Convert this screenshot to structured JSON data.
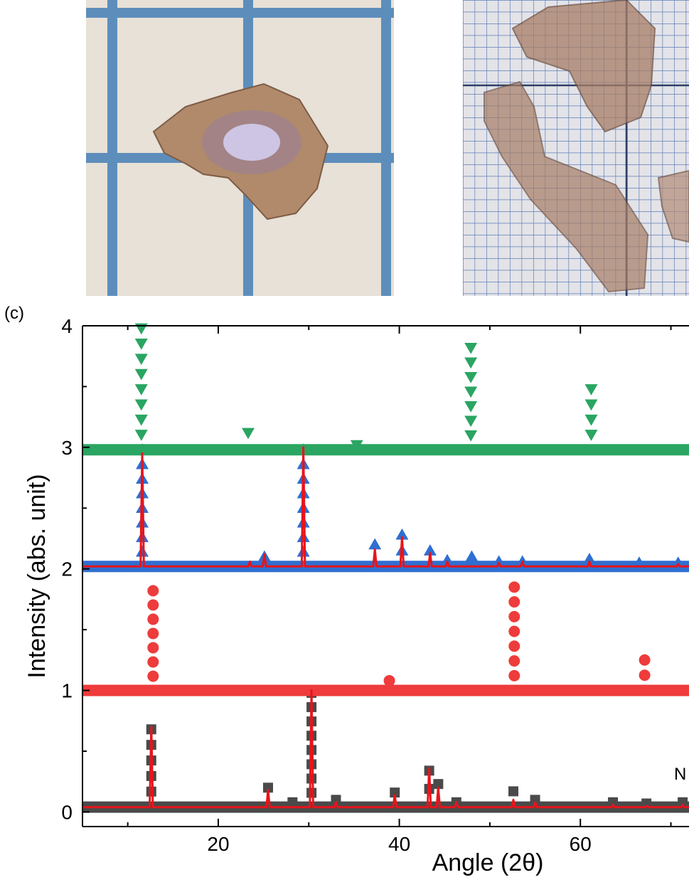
{
  "panel_c_label": "(c)",
  "truncated_annotation": "N",
  "colors": {
    "trace_0": "#4a4a4a",
    "trace_1": "#ee3b3b",
    "trace_2": "#2f6fd1",
    "trace_3": "#2aa562",
    "fit_line": "#e8141b"
  },
  "photos": {
    "a": {
      "background": "#e7e1d7",
      "grid_line": "#4f86b8",
      "crystal": "#b08a6a"
    },
    "b": {
      "background": "#e3e3e8",
      "grid_line": "#3f5f9c",
      "crystal": "#a77d66"
    }
  },
  "chart_data": {
    "type": "scatter",
    "title": "",
    "xlabel": "Angle (2θ)",
    "ylabel": "Intensity (abs. unit)",
    "xlim": [
      5,
      72
    ],
    "ylim": [
      -0.12,
      4
    ],
    "x_ticks": [
      20,
      40,
      60
    ],
    "y_ticks": [
      0,
      1,
      2,
      3,
      4
    ],
    "grid": false,
    "series": [
      {
        "marker": "square",
        "color": "#4a4a4a",
        "baseline": 0.04,
        "peaks": [
          {
            "x": 12.6,
            "y": 0.68
          },
          {
            "x": 25.5,
            "y": 0.2
          },
          {
            "x": 28.2,
            "y": 0.08
          },
          {
            "x": 30.3,
            "y": 0.98
          },
          {
            "x": 33.0,
            "y": 0.1
          },
          {
            "x": 39.5,
            "y": 0.16
          },
          {
            "x": 43.3,
            "y": 0.34
          },
          {
            "x": 44.3,
            "y": 0.23
          },
          {
            "x": 46.3,
            "y": 0.08
          },
          {
            "x": 52.6,
            "y": 0.17
          },
          {
            "x": 55.0,
            "y": 0.1
          },
          {
            "x": 63.6,
            "y": 0.08
          },
          {
            "x": 67.3,
            "y": 0.07
          },
          {
            "x": 71.3,
            "y": 0.08
          }
        ]
      },
      {
        "marker": "circle",
        "color": "#ee3b3b",
        "baseline": 1.0,
        "peaks": [
          {
            "x": 12.8,
            "y": 1.82
          },
          {
            "x": 38.9,
            "y": 1.08
          },
          {
            "x": 52.7,
            "y": 1.85
          },
          {
            "x": 67.1,
            "y": 1.25
          }
        ]
      },
      {
        "marker": "triangle-up",
        "color": "#2f6fd1",
        "baseline": 2.02,
        "peaks": [
          {
            "x": 11.6,
            "y": 2.98
          },
          {
            "x": 25.1,
            "y": 2.1
          },
          {
            "x": 29.4,
            "y": 2.98
          },
          {
            "x": 37.3,
            "y": 2.2
          },
          {
            "x": 40.3,
            "y": 2.28
          },
          {
            "x": 43.4,
            "y": 2.15
          },
          {
            "x": 45.3,
            "y": 2.07
          },
          {
            "x": 48.0,
            "y": 2.1
          },
          {
            "x": 51.0,
            "y": 2.06
          },
          {
            "x": 53.6,
            "y": 2.06
          },
          {
            "x": 61.0,
            "y": 2.08
          },
          {
            "x": 66.5,
            "y": 2.05
          },
          {
            "x": 70.8,
            "y": 2.05
          }
        ]
      },
      {
        "marker": "triangle-down",
        "color": "#2aa562",
        "baseline": 2.98,
        "peaks": [
          {
            "x": 11.5,
            "y": 3.98
          },
          {
            "x": 23.3,
            "y": 3.12
          },
          {
            "x": 35.3,
            "y": 3.02
          },
          {
            "x": 47.9,
            "y": 3.82
          },
          {
            "x": 61.2,
            "y": 3.48
          }
        ]
      }
    ],
    "fit_lines": [
      {
        "color": "#e8141b",
        "baseline": 0.04,
        "peaks": [
          {
            "x": 12.6,
            "y": 0.7
          },
          {
            "x": 25.5,
            "y": 0.18
          },
          {
            "x": 30.3,
            "y": 1.0
          },
          {
            "x": 33.0,
            "y": 0.08
          },
          {
            "x": 39.5,
            "y": 0.14
          },
          {
            "x": 43.3,
            "y": 0.36
          },
          {
            "x": 44.3,
            "y": 0.2
          },
          {
            "x": 46.3,
            "y": 0.08
          },
          {
            "x": 52.6,
            "y": 0.1
          },
          {
            "x": 55.0,
            "y": 0.08
          },
          {
            "x": 63.6,
            "y": 0.06
          },
          {
            "x": 67.3,
            "y": 0.05
          },
          {
            "x": 71.3,
            "y": 0.06
          }
        ]
      },
      {
        "color": "#e8141b",
        "baseline": 2.02,
        "peaks": [
          {
            "x": 11.6,
            "y": 2.95
          },
          {
            "x": 23.5,
            "y": 2.06
          },
          {
            "x": 25.1,
            "y": 2.12
          },
          {
            "x": 29.4,
            "y": 3.0
          },
          {
            "x": 37.3,
            "y": 2.16
          },
          {
            "x": 40.3,
            "y": 2.26
          },
          {
            "x": 43.4,
            "y": 2.13
          },
          {
            "x": 45.3,
            "y": 2.06
          },
          {
            "x": 51.0,
            "y": 2.05
          },
          {
            "x": 53.6,
            "y": 2.06
          },
          {
            "x": 61.0,
            "y": 2.06
          },
          {
            "x": 70.8,
            "y": 2.04
          }
        ]
      }
    ]
  }
}
